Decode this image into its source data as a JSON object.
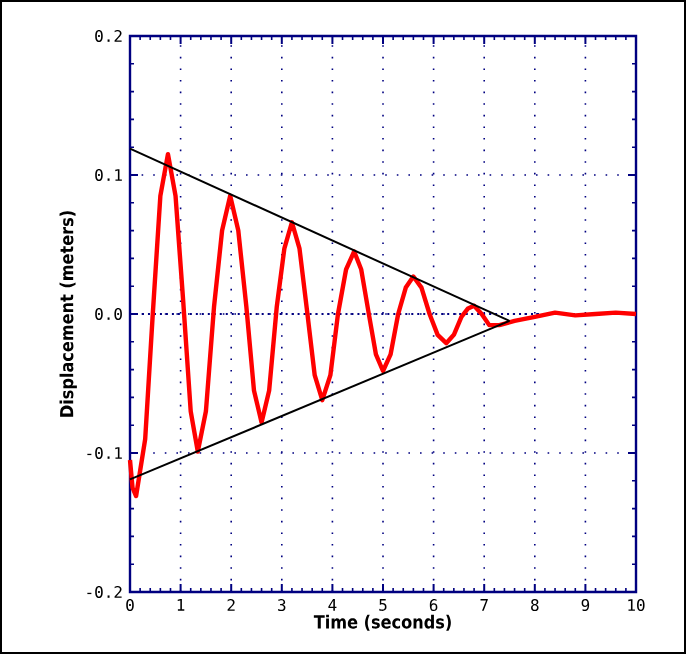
{
  "chart_data": {
    "type": "line",
    "xlabel": "Time (seconds)",
    "ylabel": "Displacement (meters)",
    "xlim": [
      0,
      10
    ],
    "ylim": [
      -0.2,
      0.2
    ],
    "xticks": [
      0,
      1,
      2,
      3,
      4,
      5,
      6,
      7,
      8,
      9,
      10
    ],
    "yticks": [
      -0.2,
      -0.1,
      {
        "value": 0,
        "label": "0.0"
      },
      0.1,
      0.2
    ],
    "grid": true,
    "marker": "none",
    "ref_lines": [
      {
        "axis": "y",
        "value": 0,
        "color": "#000080",
        "line_style": "dotted"
      }
    ],
    "series": [
      {
        "color": "#ff0000",
        "x": [
          0,
          0.05,
          0.12,
          0.3,
          0.45,
          0.6,
          0.75,
          0.9,
          1.05,
          1.2,
          1.34,
          1.5,
          1.66,
          1.82,
          1.98,
          2.14,
          2.3,
          2.45,
          2.6,
          2.75,
          2.9,
          3.05,
          3.2,
          3.35,
          3.5,
          3.65,
          3.8,
          3.96,
          4.11,
          4.27,
          4.43,
          4.57,
          4.72,
          4.86,
          5.0,
          5.15,
          5.3,
          5.45,
          5.6,
          5.76,
          5.92,
          6.08,
          6.25,
          6.4,
          6.55,
          6.68,
          6.8,
          6.95,
          7.1,
          7.3,
          7.6,
          8,
          8.4,
          8.8,
          9.2,
          9.6,
          10
        ],
        "values": [
          -0.105,
          -0.125,
          -0.131,
          -0.09,
          0.0,
          0.085,
          0.115,
          0.085,
          0.01,
          -0.07,
          -0.099,
          -0.07,
          0.005,
          0.06,
          0.085,
          0.06,
          0.005,
          -0.055,
          -0.078,
          -0.055,
          0.005,
          0.047,
          0.066,
          0.047,
          0.002,
          -0.044,
          -0.062,
          -0.044,
          0.0,
          0.032,
          0.045,
          0.032,
          0.0,
          -0.029,
          -0.041,
          -0.029,
          0.0,
          0.019,
          0.027,
          0.019,
          0.0,
          -0.015,
          -0.021,
          -0.015,
          -0.002,
          0.004,
          0.006,
          0.0,
          -0.008,
          -0.008,
          -0.005,
          -0.002,
          0.001,
          -0.001,
          0.0,
          0.001,
          0.0
        ]
      },
      {
        "type": "line",
        "color": "#000000",
        "x": [
          0,
          7.5
        ],
        "values": [
          0.119,
          -0.005
        ]
      },
      {
        "type": "line",
        "color": "#000000",
        "x": [
          0,
          7.5
        ],
        "values": [
          -0.119,
          -0.005
        ]
      }
    ]
  }
}
